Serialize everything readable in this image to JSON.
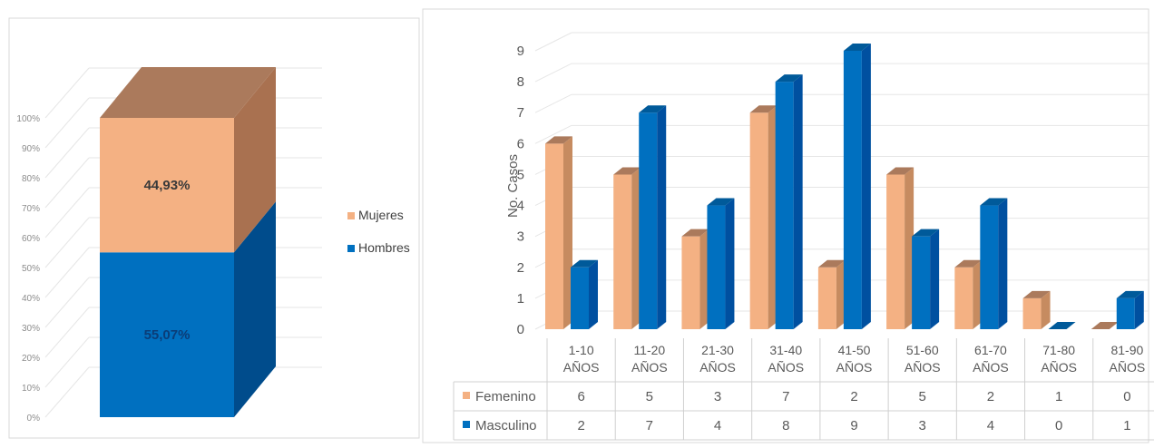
{
  "colors": {
    "femenino": "#f4b183",
    "femenino_side": "#c68b60",
    "femenino_top": "#ab7a5c",
    "masculino": "#0070c0",
    "masculino_side": "#0050a0",
    "masculino_top": "#005a9a",
    "mujeres_front": "#f4b183",
    "mujeres_side": "#a97150",
    "mujeres_top": "#ab7a5c",
    "hombres_front": "#0070c0",
    "hombres_side": "#004c8c"
  },
  "chart_data": [
    {
      "type": "bar",
      "stacked": true,
      "percent": true,
      "categories": [
        ""
      ],
      "series": [
        {
          "name": "Hombres",
          "values": [
            55.07
          ],
          "label": "55,07%"
        },
        {
          "name": "Mujeres",
          "values": [
            44.93
          ],
          "label": "44,93%"
        }
      ],
      "ylim": [
        0,
        100
      ],
      "yticks": [
        "0%",
        "10%",
        "20%",
        "30%",
        "40%",
        "50%",
        "60%",
        "70%",
        "80%",
        "90%",
        "100%"
      ],
      "legend": [
        "Mujeres",
        "Hombres"
      ],
      "legend_position": "right"
    },
    {
      "type": "bar",
      "categories": [
        [
          "1-10",
          "AÑOS"
        ],
        [
          "11-20",
          "AÑOS"
        ],
        [
          "21-30",
          "AÑOS"
        ],
        [
          "31-40",
          "AÑOS"
        ],
        [
          "41-50",
          "AÑOS"
        ],
        [
          "51-60",
          "AÑOS"
        ],
        [
          "61-70",
          "AÑOS"
        ],
        [
          "71-80",
          "AÑOS"
        ],
        [
          "81-90",
          "AÑOS"
        ]
      ],
      "series": [
        {
          "name": "Femenino",
          "values": [
            6,
            5,
            3,
            7,
            2,
            5,
            2,
            1,
            0
          ]
        },
        {
          "name": "Masculino",
          "values": [
            2,
            7,
            4,
            8,
            9,
            3,
            4,
            0,
            1
          ]
        }
      ],
      "ylabel": "No. Casos",
      "ylim": [
        0,
        9
      ],
      "yticks": [
        "0",
        "1",
        "2",
        "3",
        "4",
        "5",
        "6",
        "7",
        "8",
        "9"
      ],
      "grid": true,
      "data_table": true
    }
  ]
}
